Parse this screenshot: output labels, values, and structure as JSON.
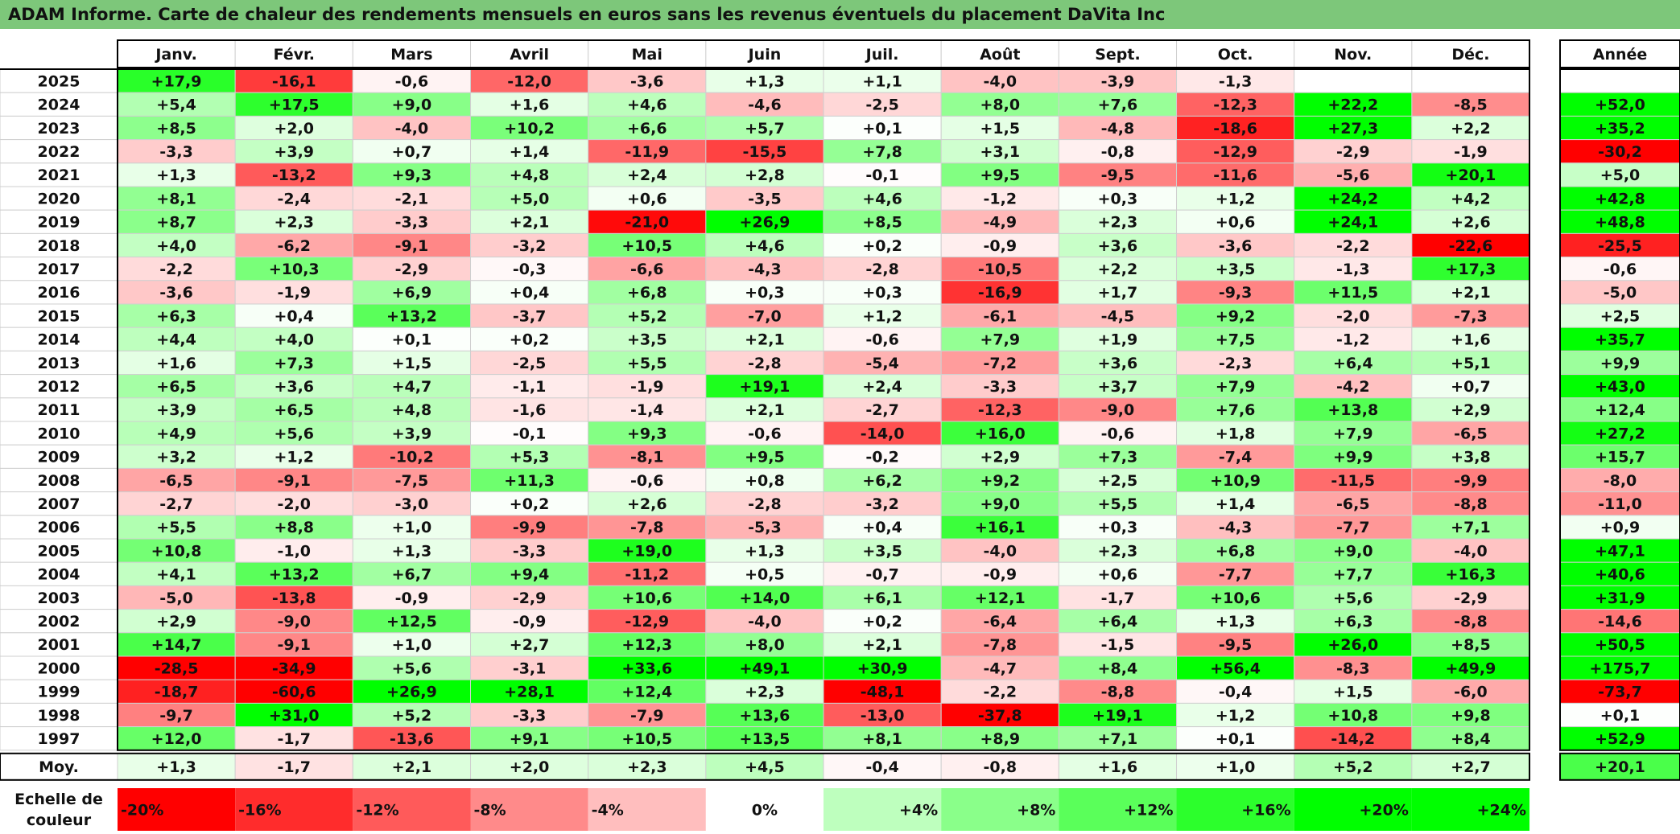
{
  "title": "ADAM Informe. Carte de chaleur des rendements mensuels en euros sans les revenus éventuels du placement DaVita Inc",
  "colors": {
    "title_bg": "#7dc77a",
    "max_red": "#ff0000",
    "max_green": "#00ff00",
    "neutral": "#ffffff"
  },
  "chart_data": {
    "type": "heatmap",
    "months": [
      "Janv.",
      "Févr.",
      "Mars",
      "Avril",
      "Mai",
      "Juin",
      "Juil.",
      "Août",
      "Sept.",
      "Oct.",
      "Nov.",
      "Déc."
    ],
    "year_header": "Année",
    "rows": [
      {
        "year": "2025",
        "values": [
          "+17,9",
          "-16,1",
          "-0,6",
          "-12,0",
          "-3,6",
          "+1,3",
          "+1,1",
          "-4,0",
          "-3,9",
          "-1,3",
          "",
          ""
        ],
        "annual": ""
      },
      {
        "year": "2024",
        "values": [
          "+5,4",
          "+17,5",
          "+9,0",
          "+1,6",
          "+4,6",
          "-4,6",
          "-2,5",
          "+8,0",
          "+7,6",
          "-12,3",
          "+22,2",
          "-8,5"
        ],
        "annual": "+52,0"
      },
      {
        "year": "2023",
        "values": [
          "+8,5",
          "+2,0",
          "-4,0",
          "+10,2",
          "+6,6",
          "+5,7",
          "+0,1",
          "+1,5",
          "-4,8",
          "-18,6",
          "+27,3",
          "+2,2"
        ],
        "annual": "+35,2"
      },
      {
        "year": "2022",
        "values": [
          "-3,3",
          "+3,9",
          "+0,7",
          "+1,4",
          "-11,9",
          "-15,5",
          "+7,8",
          "+3,1",
          "-0,8",
          "-12,9",
          "-2,9",
          "-1,9"
        ],
        "annual": "-30,2"
      },
      {
        "year": "2021",
        "values": [
          "+1,3",
          "-13,2",
          "+9,3",
          "+4,8",
          "+2,4",
          "+2,8",
          "-0,1",
          "+9,5",
          "-9,5",
          "-11,6",
          "-5,6",
          "+20,1"
        ],
        "annual": "+5,0"
      },
      {
        "year": "2020",
        "values": [
          "+8,1",
          "-2,4",
          "-2,1",
          "+5,0",
          "+0,6",
          "-3,5",
          "+4,6",
          "-1,2",
          "+0,3",
          "+1,2",
          "+24,2",
          "+4,2"
        ],
        "annual": "+42,8"
      },
      {
        "year": "2019",
        "values": [
          "+8,7",
          "+2,3",
          "-3,3",
          "+2,1",
          "-21,0",
          "+26,9",
          "+8,5",
          "-4,9",
          "+2,3",
          "+0,6",
          "+24,1",
          "+2,6"
        ],
        "annual": "+48,8"
      },
      {
        "year": "2018",
        "values": [
          "+4,0",
          "-6,2",
          "-9,1",
          "-3,2",
          "+10,5",
          "+4,6",
          "+0,2",
          "-0,9",
          "+3,6",
          "-3,6",
          "-2,2",
          "-22,6"
        ],
        "annual": "-25,5"
      },
      {
        "year": "2017",
        "values": [
          "-2,2",
          "+10,3",
          "-2,9",
          "-0,3",
          "-6,6",
          "-4,3",
          "-2,8",
          "-10,5",
          "+2,2",
          "+3,5",
          "-1,3",
          "+17,3"
        ],
        "annual": "-0,6"
      },
      {
        "year": "2016",
        "values": [
          "-3,6",
          "-1,9",
          "+6,9",
          "+0,4",
          "+6,8",
          "+0,3",
          "+0,3",
          "-16,9",
          "+1,7",
          "-9,3",
          "+11,5",
          "+2,1"
        ],
        "annual": "-5,0"
      },
      {
        "year": "2015",
        "values": [
          "+6,3",
          "+0,4",
          "+13,2",
          "-3,7",
          "+5,2",
          "-7,0",
          "+1,2",
          "-6,1",
          "-4,5",
          "+9,2",
          "-2,0",
          "-7,3"
        ],
        "annual": "+2,5"
      },
      {
        "year": "2014",
        "values": [
          "+4,4",
          "+4,0",
          "+0,1",
          "+0,2",
          "+3,5",
          "+2,1",
          "-0,6",
          "+7,9",
          "+1,9",
          "+7,5",
          "-1,2",
          "+1,6"
        ],
        "annual": "+35,7"
      },
      {
        "year": "2013",
        "values": [
          "+1,6",
          "+7,3",
          "+1,5",
          "-2,5",
          "+5,5",
          "-2,8",
          "-5,4",
          "-7,2",
          "+3,6",
          "-2,3",
          "+6,4",
          "+5,1"
        ],
        "annual": "+9,9"
      },
      {
        "year": "2012",
        "values": [
          "+6,5",
          "+3,6",
          "+4,7",
          "-1,1",
          "-1,9",
          "+19,1",
          "+2,4",
          "-3,3",
          "+3,7",
          "+7,9",
          "-4,2",
          "+0,7"
        ],
        "annual": "+43,0"
      },
      {
        "year": "2011",
        "values": [
          "+3,9",
          "+6,5",
          "+4,8",
          "-1,6",
          "-1,4",
          "+2,1",
          "-2,7",
          "-12,3",
          "-9,0",
          "+7,6",
          "+13,8",
          "+2,9"
        ],
        "annual": "+12,4"
      },
      {
        "year": "2010",
        "values": [
          "+4,9",
          "+5,6",
          "+3,9",
          "-0,1",
          "+9,3",
          "-0,6",
          "-14,0",
          "+16,0",
          "-0,6",
          "+1,8",
          "+7,9",
          "-6,5"
        ],
        "annual": "+27,2"
      },
      {
        "year": "2009",
        "values": [
          "+3,2",
          "+1,2",
          "-10,2",
          "+5,3",
          "-8,1",
          "+9,5",
          "-0,2",
          "+2,9",
          "+7,3",
          "-7,4",
          "+9,9",
          "+3,8"
        ],
        "annual": "+15,7"
      },
      {
        "year": "2008",
        "values": [
          "-6,5",
          "-9,1",
          "-7,5",
          "+11,3",
          "-0,6",
          "+0,8",
          "+6,2",
          "+9,2",
          "+2,5",
          "+10,9",
          "-11,5",
          "-9,9"
        ],
        "annual": "-8,0"
      },
      {
        "year": "2007",
        "values": [
          "-2,7",
          "-2,0",
          "-3,0",
          "+0,2",
          "+2,6",
          "-2,8",
          "-3,2",
          "+9,0",
          "+5,5",
          "+1,4",
          "-6,5",
          "-8,8"
        ],
        "annual": "-11,0"
      },
      {
        "year": "2006",
        "values": [
          "+5,5",
          "+8,8",
          "+1,0",
          "-9,9",
          "-7,8",
          "-5,3",
          "+0,4",
          "+16,1",
          "+0,3",
          "-4,3",
          "-7,7",
          "+7,1"
        ],
        "annual": "+0,9"
      },
      {
        "year": "2005",
        "values": [
          "+10,8",
          "-1,0",
          "+1,3",
          "-3,3",
          "+19,0",
          "+1,3",
          "+3,5",
          "-4,0",
          "+2,3",
          "+6,8",
          "+9,0",
          "-4,0"
        ],
        "annual": "+47,1"
      },
      {
        "year": "2004",
        "values": [
          "+4,1",
          "+13,2",
          "+6,7",
          "+9,4",
          "-11,2",
          "+0,5",
          "-0,7",
          "-0,9",
          "+0,6",
          "-7,7",
          "+7,7",
          "+16,3"
        ],
        "annual": "+40,6"
      },
      {
        "year": "2003",
        "values": [
          "-5,0",
          "-13,8",
          "-0,9",
          "-2,9",
          "+10,6",
          "+14,0",
          "+6,1",
          "+12,1",
          "-1,7",
          "+10,6",
          "+5,6",
          "-2,9"
        ],
        "annual": "+31,9"
      },
      {
        "year": "2002",
        "values": [
          "+2,9",
          "-9,0",
          "+12,5",
          "-0,9",
          "-12,9",
          "-4,0",
          "+0,2",
          "-6,4",
          "+6,4",
          "+1,3",
          "+6,3",
          "-8,8"
        ],
        "annual": "-14,6"
      },
      {
        "year": "2001",
        "values": [
          "+14,7",
          "-9,1",
          "+1,0",
          "+2,7",
          "+12,3",
          "+8,0",
          "+2,1",
          "-7,8",
          "-1,5",
          "-9,5",
          "+26,0",
          "+8,5"
        ],
        "annual": "+50,5"
      },
      {
        "year": "2000",
        "values": [
          "-28,5",
          "-34,9",
          "+5,6",
          "-3,1",
          "+33,6",
          "+49,1",
          "+30,9",
          "-4,7",
          "+8,4",
          "+56,4",
          "-8,3",
          "+49,9"
        ],
        "annual": "+175,7"
      },
      {
        "year": "1999",
        "values": [
          "-18,7",
          "-60,6",
          "+26,9",
          "+28,1",
          "+12,4",
          "+2,3",
          "-48,1",
          "-2,2",
          "-8,8",
          "-0,4",
          "+1,5",
          "-6,0"
        ],
        "annual": "-73,7"
      },
      {
        "year": "1998",
        "values": [
          "-9,7",
          "+31,0",
          "+5,2",
          "-3,3",
          "-7,9",
          "+13,6",
          "-13,0",
          "-37,8",
          "+19,1",
          "+1,2",
          "+10,8",
          "+9,8"
        ],
        "annual": "+0,1"
      },
      {
        "year": "1997",
        "values": [
          "+12,0",
          "-1,7",
          "-13,6",
          "+9,1",
          "+10,5",
          "+13,5",
          "+8,1",
          "+8,9",
          "+7,1",
          "+0,1",
          "-14,2",
          "+8,4"
        ],
        "annual": "+52,9"
      }
    ],
    "average": {
      "label": "Moy.",
      "values": [
        "+1,3",
        "-1,7",
        "+2,1",
        "+2,0",
        "+2,3",
        "+4,5",
        "-0,4",
        "-0,8",
        "+1,6",
        "+1,0",
        "+5,2",
        "+2,7"
      ],
      "annual": "+20,1"
    },
    "scale": {
      "label_line1": "Echelle de",
      "label_line2": "couleur",
      "steps": [
        {
          "label": "-20%",
          "value": -20
        },
        {
          "label": "-16%",
          "value": -16
        },
        {
          "label": "-12%",
          "value": -12
        },
        {
          "label": "-8%",
          "value": -8
        },
        {
          "label": "-4%",
          "value": -4
        },
        {
          "label": "0%",
          "value": 0
        },
        {
          "label": "+4%",
          "value": 4
        },
        {
          "label": "+8%",
          "value": 8
        },
        {
          "label": "+12%",
          "value": 12
        },
        {
          "label": "+16%",
          "value": 16
        },
        {
          "label": "+20%",
          "value": 20
        },
        {
          "label": "+24%",
          "value": 24
        }
      ]
    }
  }
}
